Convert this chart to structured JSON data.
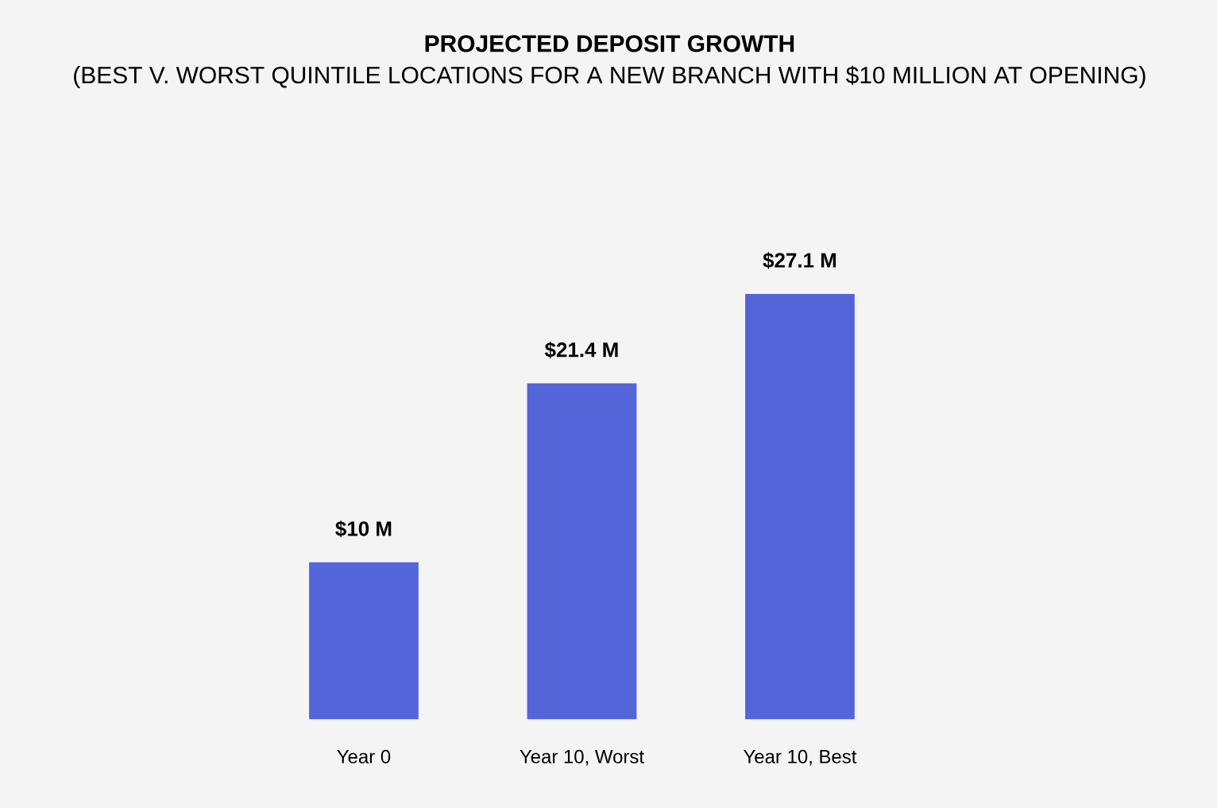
{
  "chart_data": {
    "type": "bar",
    "title": "PROJECTED DEPOSIT GROWTH",
    "subtitle": "(BEST V. WORST QUINTILE LOCATIONS FOR A NEW BRANCH WITH $10 MILLION AT OPENING)",
    "categories": [
      "Year 0",
      "Year 10, Worst",
      "Year 10, Best"
    ],
    "values": [
      10,
      21.4,
      27.1
    ],
    "value_labels": [
      "$10 M",
      "$21.4 M",
      "$27.1 M"
    ],
    "color": "#5465d9"
  }
}
